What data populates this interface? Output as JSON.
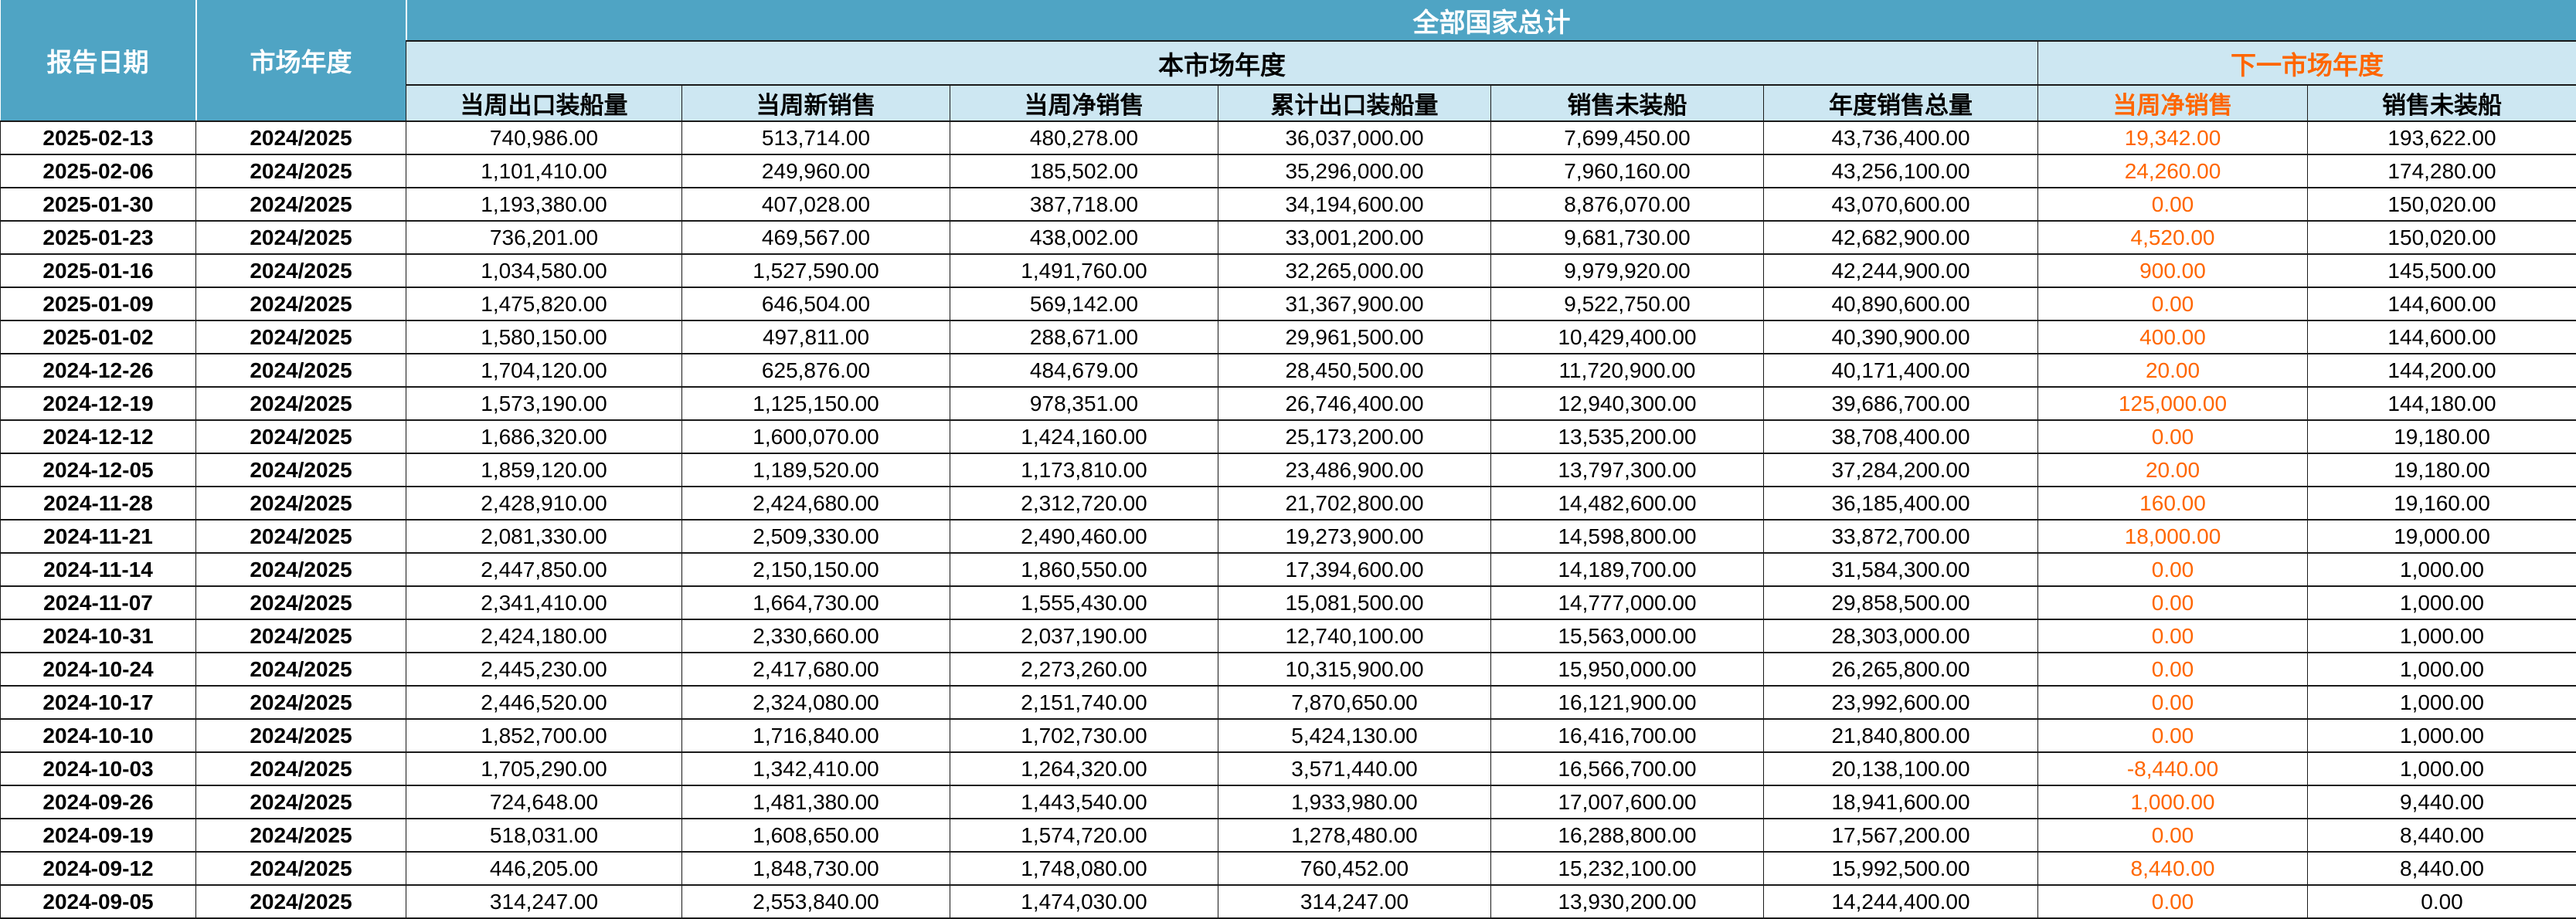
{
  "colors": {
    "header_blue": "#4FA4C4",
    "header_light_blue": "#CDE7F2",
    "accent_orange": "#FF6600",
    "grid_line": "#1A1A1A"
  },
  "table": {
    "title": "全部国家总计",
    "col_report_date": "报告日期",
    "col_market_year": "市场年度",
    "group_current": "本市场年度",
    "group_next": "下一市场年度",
    "current_columns": [
      "当周出口装船量",
      "当周新销售",
      "当周净销售",
      "累计出口装船量",
      "销售未装船",
      "年度销售总量"
    ],
    "next_columns": [
      "当周净销售",
      "销售未装船"
    ],
    "rows": [
      {
        "date": "2025-02-13",
        "year": "2024/2025",
        "values": [
          "740,986.00",
          "513,714.00",
          "480,278.00",
          "36,037,000.00",
          "7,699,450.00",
          "43,736,400.00",
          "19,342.00",
          "193,622.00"
        ]
      },
      {
        "date": "2025-02-06",
        "year": "2024/2025",
        "values": [
          "1,101,410.00",
          "249,960.00",
          "185,502.00",
          "35,296,000.00",
          "7,960,160.00",
          "43,256,100.00",
          "24,260.00",
          "174,280.00"
        ]
      },
      {
        "date": "2025-01-30",
        "year": "2024/2025",
        "values": [
          "1,193,380.00",
          "407,028.00",
          "387,718.00",
          "34,194,600.00",
          "8,876,070.00",
          "43,070,600.00",
          "0.00",
          "150,020.00"
        ]
      },
      {
        "date": "2025-01-23",
        "year": "2024/2025",
        "values": [
          "736,201.00",
          "469,567.00",
          "438,002.00",
          "33,001,200.00",
          "9,681,730.00",
          "42,682,900.00",
          "4,520.00",
          "150,020.00"
        ]
      },
      {
        "date": "2025-01-16",
        "year": "2024/2025",
        "values": [
          "1,034,580.00",
          "1,527,590.00",
          "1,491,760.00",
          "32,265,000.00",
          "9,979,920.00",
          "42,244,900.00",
          "900.00",
          "145,500.00"
        ]
      },
      {
        "date": "2025-01-09",
        "year": "2024/2025",
        "values": [
          "1,475,820.00",
          "646,504.00",
          "569,142.00",
          "31,367,900.00",
          "9,522,750.00",
          "40,890,600.00",
          "0.00",
          "144,600.00"
        ]
      },
      {
        "date": "2025-01-02",
        "year": "2024/2025",
        "values": [
          "1,580,150.00",
          "497,811.00",
          "288,671.00",
          "29,961,500.00",
          "10,429,400.00",
          "40,390,900.00",
          "400.00",
          "144,600.00"
        ]
      },
      {
        "date": "2024-12-26",
        "year": "2024/2025",
        "values": [
          "1,704,120.00",
          "625,876.00",
          "484,679.00",
          "28,450,500.00",
          "11,720,900.00",
          "40,171,400.00",
          "20.00",
          "144,200.00"
        ]
      },
      {
        "date": "2024-12-19",
        "year": "2024/2025",
        "values": [
          "1,573,190.00",
          "1,125,150.00",
          "978,351.00",
          "26,746,400.00",
          "12,940,300.00",
          "39,686,700.00",
          "125,000.00",
          "144,180.00"
        ]
      },
      {
        "date": "2024-12-12",
        "year": "2024/2025",
        "values": [
          "1,686,320.00",
          "1,600,070.00",
          "1,424,160.00",
          "25,173,200.00",
          "13,535,200.00",
          "38,708,400.00",
          "0.00",
          "19,180.00"
        ]
      },
      {
        "date": "2024-12-05",
        "year": "2024/2025",
        "values": [
          "1,859,120.00",
          "1,189,520.00",
          "1,173,810.00",
          "23,486,900.00",
          "13,797,300.00",
          "37,284,200.00",
          "20.00",
          "19,180.00"
        ]
      },
      {
        "date": "2024-11-28",
        "year": "2024/2025",
        "values": [
          "2,428,910.00",
          "2,424,680.00",
          "2,312,720.00",
          "21,702,800.00",
          "14,482,600.00",
          "36,185,400.00",
          "160.00",
          "19,160.00"
        ]
      },
      {
        "date": "2024-11-21",
        "year": "2024/2025",
        "values": [
          "2,081,330.00",
          "2,509,330.00",
          "2,490,460.00",
          "19,273,900.00",
          "14,598,800.00",
          "33,872,700.00",
          "18,000.00",
          "19,000.00"
        ]
      },
      {
        "date": "2024-11-14",
        "year": "2024/2025",
        "values": [
          "2,447,850.00",
          "2,150,150.00",
          "1,860,550.00",
          "17,394,600.00",
          "14,189,700.00",
          "31,584,300.00",
          "0.00",
          "1,000.00"
        ]
      },
      {
        "date": "2024-11-07",
        "year": "2024/2025",
        "values": [
          "2,341,410.00",
          "1,664,730.00",
          "1,555,430.00",
          "15,081,500.00",
          "14,777,000.00",
          "29,858,500.00",
          "0.00",
          "1,000.00"
        ]
      },
      {
        "date": "2024-10-31",
        "year": "2024/2025",
        "values": [
          "2,424,180.00",
          "2,330,660.00",
          "2,037,190.00",
          "12,740,100.00",
          "15,563,000.00",
          "28,303,000.00",
          "0.00",
          "1,000.00"
        ]
      },
      {
        "date": "2024-10-24",
        "year": "2024/2025",
        "values": [
          "2,445,230.00",
          "2,417,680.00",
          "2,273,260.00",
          "10,315,900.00",
          "15,950,000.00",
          "26,265,800.00",
          "0.00",
          "1,000.00"
        ]
      },
      {
        "date": "2024-10-17",
        "year": "2024/2025",
        "values": [
          "2,446,520.00",
          "2,324,080.00",
          "2,151,740.00",
          "7,870,650.00",
          "16,121,900.00",
          "23,992,600.00",
          "0.00",
          "1,000.00"
        ]
      },
      {
        "date": "2024-10-10",
        "year": "2024/2025",
        "values": [
          "1,852,700.00",
          "1,716,840.00",
          "1,702,730.00",
          "5,424,130.00",
          "16,416,700.00",
          "21,840,800.00",
          "0.00",
          "1,000.00"
        ]
      },
      {
        "date": "2024-10-03",
        "year": "2024/2025",
        "values": [
          "1,705,290.00",
          "1,342,410.00",
          "1,264,320.00",
          "3,571,440.00",
          "16,566,700.00",
          "20,138,100.00",
          "-8,440.00",
          "1,000.00"
        ]
      },
      {
        "date": "2024-09-26",
        "year": "2024/2025",
        "values": [
          "724,648.00",
          "1,481,380.00",
          "1,443,540.00",
          "1,933,980.00",
          "17,007,600.00",
          "18,941,600.00",
          "1,000.00",
          "9,440.00"
        ]
      },
      {
        "date": "2024-09-19",
        "year": "2024/2025",
        "values": [
          "518,031.00",
          "1,608,650.00",
          "1,574,720.00",
          "1,278,480.00",
          "16,288,800.00",
          "17,567,200.00",
          "0.00",
          "8,440.00"
        ]
      },
      {
        "date": "2024-09-12",
        "year": "2024/2025",
        "values": [
          "446,205.00",
          "1,848,730.00",
          "1,748,080.00",
          "760,452.00",
          "15,232,100.00",
          "15,992,500.00",
          "8,440.00",
          "8,440.00"
        ]
      },
      {
        "date": "2024-09-05",
        "year": "2024/2025",
        "values": [
          "314,247.00",
          "2,553,840.00",
          "1,474,030.00",
          "314,247.00",
          "13,930,200.00",
          "14,244,400.00",
          "0.00",
          "0.00"
        ]
      }
    ]
  }
}
